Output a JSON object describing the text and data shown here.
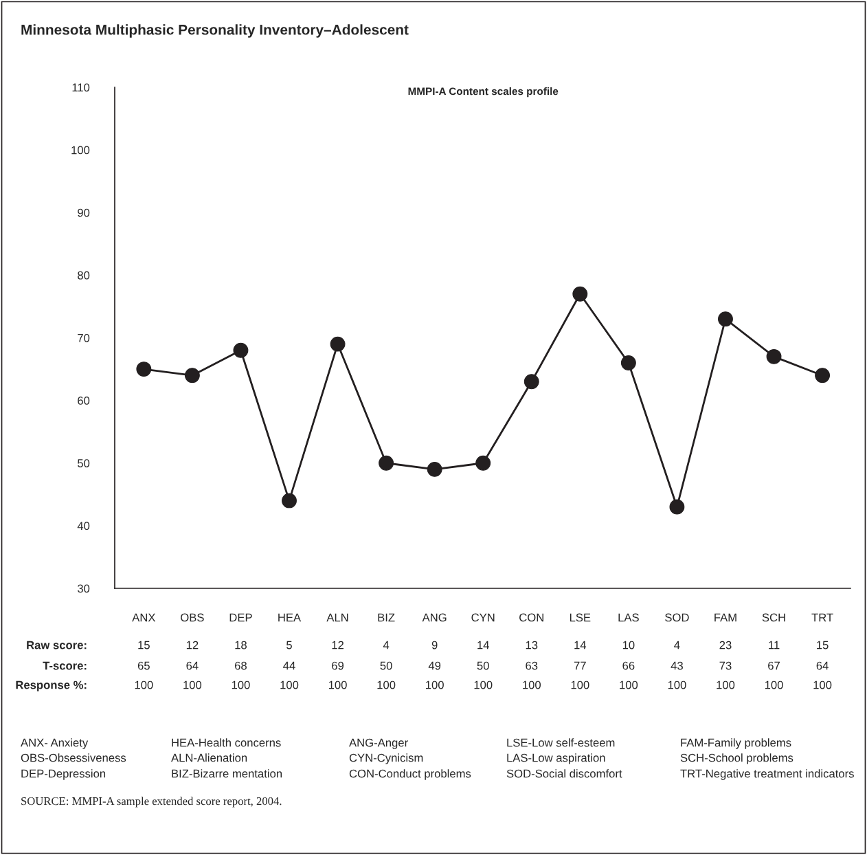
{
  "chart_data": {
    "type": "line",
    "title": "Minnesota Multiphasic Personality Inventory–Adolescent",
    "subtitle": "MMPI-A Content scales profile",
    "categories": [
      "ANX",
      "OBS",
      "DEP",
      "HEA",
      "ALN",
      "BIZ",
      "ANG",
      "CYN",
      "CON",
      "LSE",
      "LAS",
      "SOD",
      "FAM",
      "SCH",
      "TRT"
    ],
    "series": [
      {
        "color": "#231f20",
        "values": [
          65,
          64,
          68,
          44,
          69,
          50,
          49,
          50,
          63,
          77,
          66,
          43,
          73,
          67,
          64
        ]
      }
    ],
    "ylim": [
      30,
      110
    ],
    "yticks": [
      30,
      40,
      50,
      60,
      70,
      80,
      90,
      100,
      110
    ],
    "grid": false,
    "marker": "circle",
    "line_style": "solid",
    "data_labels": true,
    "annotations": [
      "Raw score:",
      "T-score:",
      "Response %:",
      "15",
      "12",
      "18",
      "5",
      "12",
      "4",
      "9",
      "14",
      "13",
      "14",
      "10",
      "4",
      "23",
      "11",
      "15",
      "100",
      "100",
      "100",
      "100",
      "100",
      "100",
      "100",
      "100",
      "100",
      "100",
      "100",
      "100",
      "100",
      "100",
      "100",
      "ANX- Anxiety",
      "OBS-Obsessiveness",
      "DEP-Depression",
      "HEA-Health concerns",
      "ALN-Alienation",
      "BIZ-Bizarre mentation",
      "ANG-Anger",
      "CYN-Cynicism",
      "CON-Conduct problems",
      "LSE-Low self-esteem",
      "LAS-Low aspiration",
      "SOD-Social discomfort",
      "FAM-Family problems",
      "SCH-School problems",
      "TRT-Negative treatment indicators",
      "SOURCE: MMPI-A sample extended score report, 2004."
    ]
  }
}
